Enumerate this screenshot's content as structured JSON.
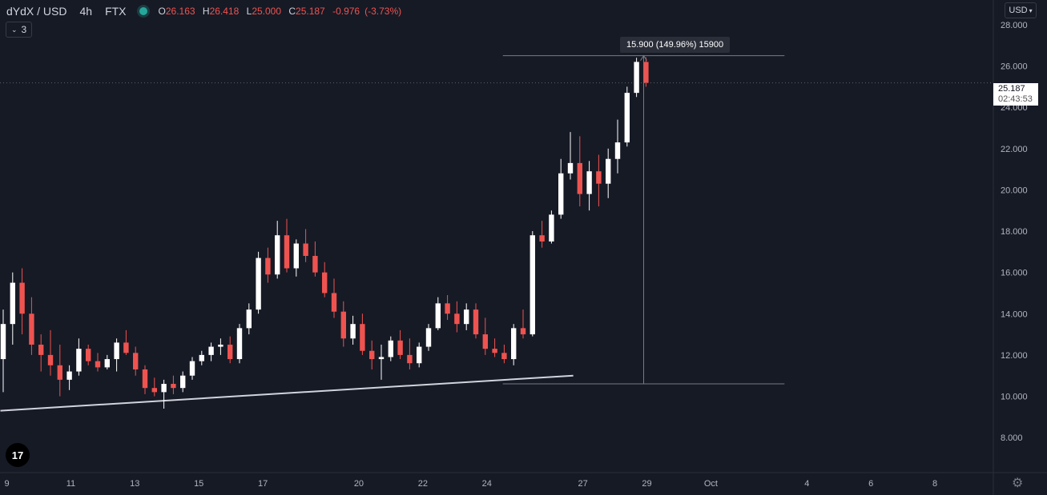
{
  "header": {
    "symbol": "dYdX / USD",
    "interval": "4h",
    "exchange": "FTX",
    "ohlc": {
      "o": "26.163",
      "h": "26.418",
      "l": "25.000",
      "c": "25.187",
      "change": "-0.976",
      "change_pct": "(-3.73%)"
    },
    "labels": {
      "o": "O",
      "h": "H",
      "l": "L",
      "c": "C"
    },
    "status_color": "#26a69a"
  },
  "indicators_badge": "3",
  "currency_button": "USD",
  "current_price": {
    "value": "25.187",
    "countdown": "02:43:53"
  },
  "measure_label": "15.900 (149.96%) 15900",
  "logo_text": "17",
  "colors": {
    "up": "#ffffff",
    "down": "#ef5350",
    "background": "#161a25",
    "axis_text": "#b2b5be"
  },
  "chart_data": {
    "type": "candlestick",
    "title": "",
    "y_axis": {
      "side": "right",
      "ylim": [
        6.3,
        29.2
      ],
      "ticks": [
        "8.000",
        "10.000",
        "12.000",
        "14.000",
        "16.000",
        "18.000",
        "20.000",
        "22.000",
        "24.000",
        "26.000",
        "28.000"
      ]
    },
    "x_axis": {
      "tick_labels": [
        {
          "t": 0,
          "label": "9"
        },
        {
          "t": 2,
          "label": "11"
        },
        {
          "t": 4,
          "label": "13"
        },
        {
          "t": 6,
          "label": "15"
        },
        {
          "t": 8,
          "label": "17"
        },
        {
          "t": 11,
          "label": "20"
        },
        {
          "t": 13,
          "label": "22"
        },
        {
          "t": 15,
          "label": "24"
        },
        {
          "t": 18,
          "label": "27"
        },
        {
          "t": 20,
          "label": "29"
        },
        {
          "t": 22,
          "label": "Oct"
        },
        {
          "t": 25,
          "label": "4"
        },
        {
          "t": 27,
          "label": "6"
        },
        {
          "t": 29,
          "label": "8"
        }
      ]
    },
    "candles": [
      [
        11.8,
        14.2,
        10.2,
        13.5
      ],
      [
        13.5,
        16.0,
        12.5,
        15.5
      ],
      [
        15.5,
        16.2,
        13.0,
        14.0
      ],
      [
        14.0,
        14.8,
        12.0,
        12.5
      ],
      [
        12.5,
        13.0,
        11.2,
        12.0
      ],
      [
        12.0,
        13.2,
        11.0,
        11.5
      ],
      [
        11.5,
        12.5,
        10.0,
        10.8
      ],
      [
        10.8,
        11.5,
        10.3,
        11.2
      ],
      [
        11.2,
        12.8,
        11.0,
        12.3
      ],
      [
        12.3,
        12.5,
        11.5,
        11.7
      ],
      [
        11.7,
        12.1,
        11.2,
        11.4
      ],
      [
        11.4,
        12.0,
        11.3,
        11.8
      ],
      [
        11.8,
        12.8,
        11.2,
        12.6
      ],
      [
        12.6,
        13.2,
        12.0,
        12.1
      ],
      [
        12.1,
        12.4,
        11.0,
        11.3
      ],
      [
        11.3,
        11.5,
        10.1,
        10.4
      ],
      [
        10.4,
        10.9,
        10.0,
        10.2
      ],
      [
        10.2,
        10.8,
        9.4,
        10.6
      ],
      [
        10.6,
        11.0,
        10.1,
        10.4
      ],
      [
        10.4,
        11.2,
        10.2,
        11.0
      ],
      [
        11.0,
        11.9,
        10.8,
        11.7
      ],
      [
        11.7,
        12.2,
        11.5,
        12.0
      ],
      [
        12.0,
        12.6,
        11.7,
        12.4
      ],
      [
        12.4,
        12.8,
        12.0,
        12.5
      ],
      [
        12.5,
        12.9,
        11.6,
        11.8
      ],
      [
        11.8,
        13.5,
        11.6,
        13.3
      ],
      [
        13.3,
        14.5,
        13.0,
        14.2
      ],
      [
        14.2,
        17.0,
        14.0,
        16.7
      ],
      [
        16.7,
        17.2,
        15.5,
        15.9
      ],
      [
        15.9,
        18.5,
        15.7,
        17.8
      ],
      [
        17.8,
        18.6,
        16.0,
        16.2
      ],
      [
        16.2,
        17.6,
        15.8,
        17.4
      ],
      [
        17.4,
        18.1,
        16.5,
        16.8
      ],
      [
        16.8,
        17.5,
        15.8,
        16.0
      ],
      [
        16.0,
        16.5,
        14.8,
        15.0
      ],
      [
        15.0,
        15.7,
        13.8,
        14.1
      ],
      [
        14.1,
        14.6,
        12.4,
        12.8
      ],
      [
        12.8,
        13.9,
        12.5,
        13.5
      ],
      [
        13.5,
        14.0,
        12.0,
        12.2
      ],
      [
        12.2,
        12.7,
        11.3,
        11.8
      ],
      [
        11.8,
        12.5,
        10.8,
        11.9
      ],
      [
        11.9,
        12.9,
        11.7,
        12.7
      ],
      [
        12.7,
        13.2,
        11.8,
        12.0
      ],
      [
        12.0,
        12.8,
        11.3,
        11.6
      ],
      [
        11.6,
        12.6,
        11.4,
        12.4
      ],
      [
        12.4,
        13.5,
        12.2,
        13.3
      ],
      [
        13.3,
        14.8,
        13.2,
        14.5
      ],
      [
        14.5,
        14.9,
        13.7,
        14.0
      ],
      [
        14.0,
        14.6,
        13.1,
        13.5
      ],
      [
        13.5,
        14.5,
        13.2,
        14.2
      ],
      [
        14.2,
        14.5,
        12.8,
        13.0
      ],
      [
        13.0,
        13.8,
        12.0,
        12.3
      ],
      [
        12.3,
        12.8,
        11.9,
        12.1
      ],
      [
        12.1,
        12.5,
        11.6,
        11.8
      ],
      [
        11.8,
        13.5,
        11.5,
        13.3
      ],
      [
        13.3,
        14.2,
        12.8,
        13.0
      ],
      [
        13.0,
        18.0,
        12.9,
        17.8
      ],
      [
        17.8,
        18.5,
        17.2,
        17.5
      ],
      [
        17.5,
        19.0,
        17.4,
        18.8
      ],
      [
        18.8,
        21.5,
        18.6,
        20.8
      ],
      [
        20.8,
        22.8,
        20.5,
        21.3
      ],
      [
        21.3,
        22.6,
        19.2,
        19.8
      ],
      [
        19.8,
        21.4,
        19.0,
        20.9
      ],
      [
        20.9,
        21.7,
        19.2,
        20.3
      ],
      [
        20.3,
        22.0,
        19.6,
        21.5
      ],
      [
        21.5,
        23.4,
        20.8,
        22.3
      ],
      [
        22.3,
        25.0,
        22.1,
        24.7
      ],
      [
        24.7,
        26.4,
        24.5,
        26.2
      ],
      [
        26.2,
        26.42,
        25.0,
        25.19
      ]
    ],
    "trendline": {
      "from": {
        "t": -0.2,
        "y": 9.3
      },
      "to": {
        "t": 17.7,
        "y": 11.0
      }
    },
    "measure": {
      "t_start": 15.5,
      "t_end": 24.3,
      "y_high": 26.5,
      "y_low": 10.6,
      "delta": "15.900",
      "pct": "149.96%"
    },
    "current_price_line": 25.187,
    "grid": false,
    "legend": "none"
  }
}
